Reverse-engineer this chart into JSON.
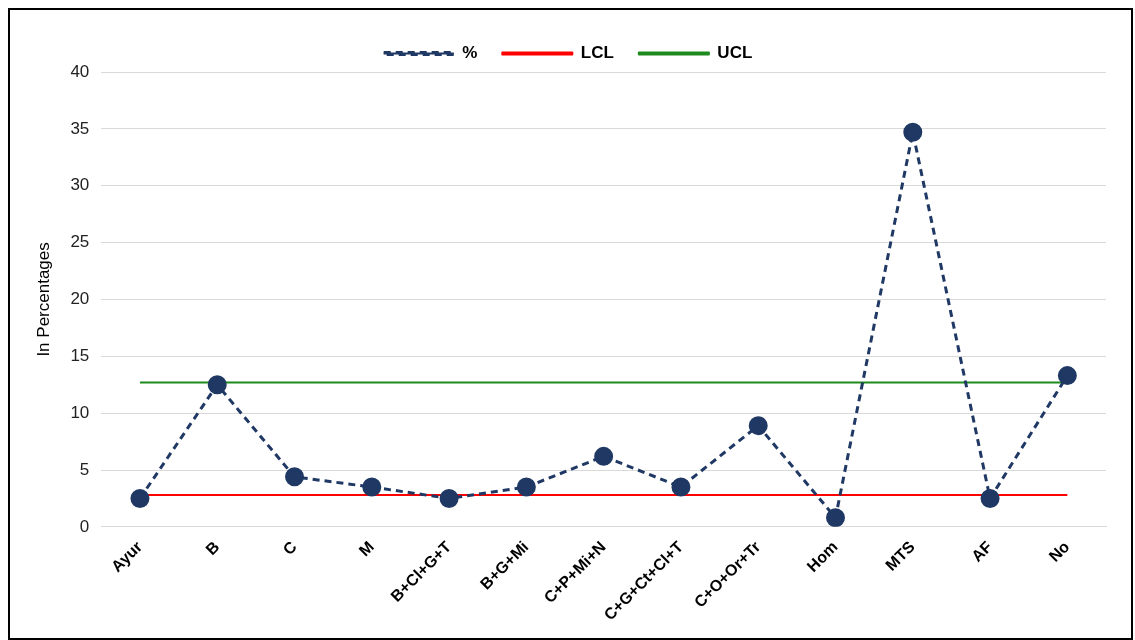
{
  "chart_data": {
    "type": "line",
    "ylabel": "In Percentages",
    "categories": [
      "Ayur",
      "B",
      "C",
      "M",
      "B+Cl+G+T",
      "B+G+Mi",
      "C+P+Mi+N",
      "C+G+Ct+Cl+T",
      "C+O+Or+Tr",
      "Hom",
      "MTS",
      "AF",
      "No"
    ],
    "series": [
      {
        "name": "%",
        "color": "#1f3864",
        "marker": "circle",
        "line_style": "dashed",
        "values": [
          2.5,
          12.5,
          4.4,
          3.5,
          2.5,
          3.5,
          6.2,
          3.5,
          8.9,
          0.8,
          34.7,
          2.5,
          13.3
        ]
      },
      {
        "name": "LCL",
        "color": "#ff0000",
        "marker": "none",
        "line_style": "solid",
        "values": [
          2.8,
          2.8,
          2.8,
          2.8,
          2.8,
          2.8,
          2.8,
          2.8,
          2.8,
          2.8,
          2.8,
          2.8,
          2.8
        ]
      },
      {
        "name": "UCL",
        "color": "#1e8a1e",
        "marker": "none",
        "line_style": "solid",
        "values": [
          12.7,
          12.7,
          12.7,
          12.7,
          12.7,
          12.7,
          12.7,
          12.7,
          12.7,
          12.7,
          12.7,
          12.7,
          12.7
        ]
      }
    ],
    "ylim": [
      0,
      40
    ],
    "yticks": [
      0,
      5,
      10,
      15,
      20,
      25,
      30,
      35,
      40
    ],
    "grid": "y",
    "legend": "top"
  }
}
